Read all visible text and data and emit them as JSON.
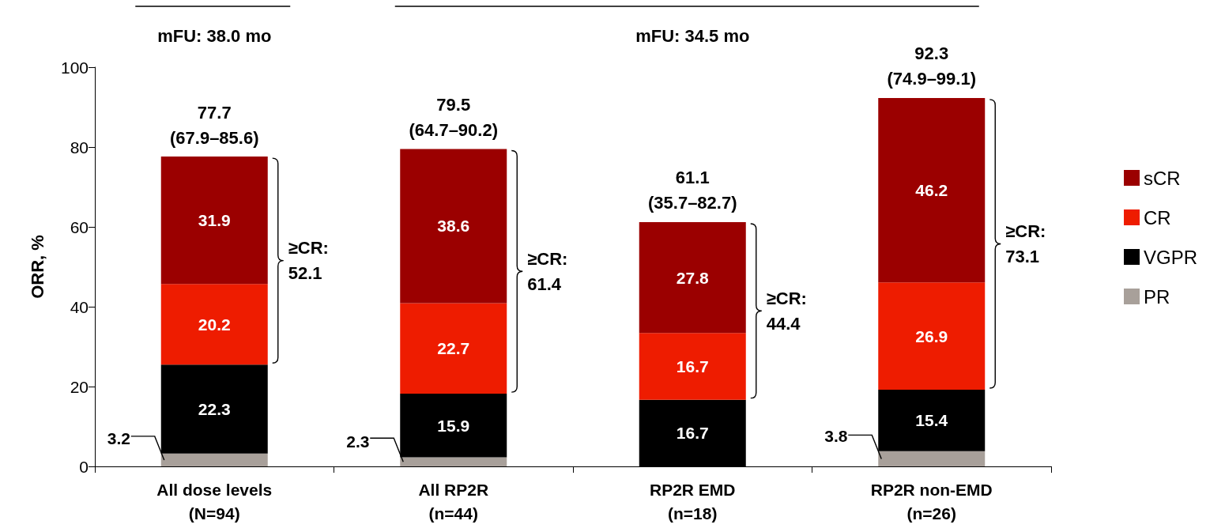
{
  "chart_data": {
    "type": "bar",
    "stacked": true,
    "ylabel": "ORR, %",
    "categories": [
      "All dose levels\n(N=94)",
      "All RP2R\n(n=44)",
      "RP2R EMD\n(n=18)",
      "RP2R non-EMD\n(n=26)"
    ],
    "series": [
      {
        "name": "PR",
        "color": "#a8a09a",
        "values": [
          3.2,
          2.3,
          null,
          3.8
        ],
        "value_labels": [
          "3.2",
          "2.3",
          null,
          "3.8"
        ]
      },
      {
        "name": "VGPR",
        "color": "#000000",
        "values": [
          22.3,
          15.9,
          16.7,
          15.4
        ],
        "value_labels": [
          "22.3",
          "15.9",
          "16.7",
          "15.4"
        ]
      },
      {
        "name": "CR",
        "color": "#ee1c00",
        "values": [
          20.2,
          22.7,
          16.7,
          26.9
        ],
        "value_labels": [
          "20.2",
          "22.7",
          "16.7",
          "26.9"
        ]
      },
      {
        "name": "sCR",
        "color": "#9b0000",
        "values": [
          31.9,
          38.6,
          27.8,
          46.2
        ],
        "value_labels": [
          "31.9",
          "38.6",
          "27.8",
          "46.2"
        ]
      }
    ],
    "totals": [
      "77.7\n(67.9–85.6)",
      "79.5\n(64.7–90.2)",
      "61.1\n(35.7–82.7)",
      "92.3\n(74.9–99.1)"
    ],
    "annotations": [
      "mFU: 38.0 mo",
      "mFU: 34.5 mo",
      "≥CR:\n52.1",
      "≥CR:\n61.4",
      "≥CR:\n44.4",
      "≥CR:\n73.1"
    ],
    "ylim": [
      0,
      100
    ],
    "yticks": [
      0,
      20,
      40,
      60,
      80,
      100
    ],
    "grid": false,
    "legend": "right"
  }
}
